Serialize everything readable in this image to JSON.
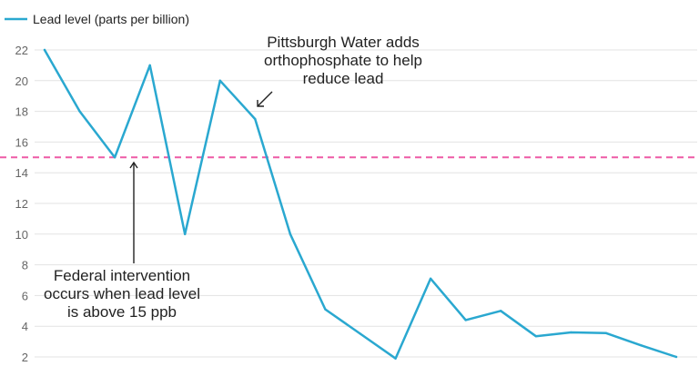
{
  "chart_data": {
    "type": "line",
    "title": "",
    "xlabel": "",
    "ylabel": "",
    "ylim": [
      1,
      23
    ],
    "yticks": [
      2,
      4,
      6,
      8,
      10,
      12,
      14,
      16,
      18,
      20,
      22
    ],
    "grid": true,
    "legend": {
      "position": "top-left",
      "entries": [
        {
          "label": "Lead level (parts per billion)",
          "color": "#2aa8d0"
        }
      ]
    },
    "series": [
      {
        "name": "Lead level (parts per billion)",
        "color": "#2aa8d0",
        "values": [
          22,
          18,
          15,
          21,
          10,
          20,
          17.5,
          10,
          5.1,
          3.5,
          1.9,
          7.1,
          4.4,
          5.0,
          3.35,
          3.6,
          3.55,
          2.75,
          2.0
        ]
      }
    ],
    "reference_line": {
      "value": 15,
      "color": "#ee5aa6",
      "style": "dashed"
    },
    "annotations": [
      {
        "id": "orthophosphate",
        "lines": [
          "Pittsburgh Water adds",
          "orthophosphate to help",
          "reduce lead"
        ],
        "target_index": 6
      },
      {
        "id": "federal",
        "lines": [
          "Federal intervention",
          "occurs when lead level",
          "is above 15 ppb"
        ],
        "target_index": 2.6
      }
    ]
  }
}
